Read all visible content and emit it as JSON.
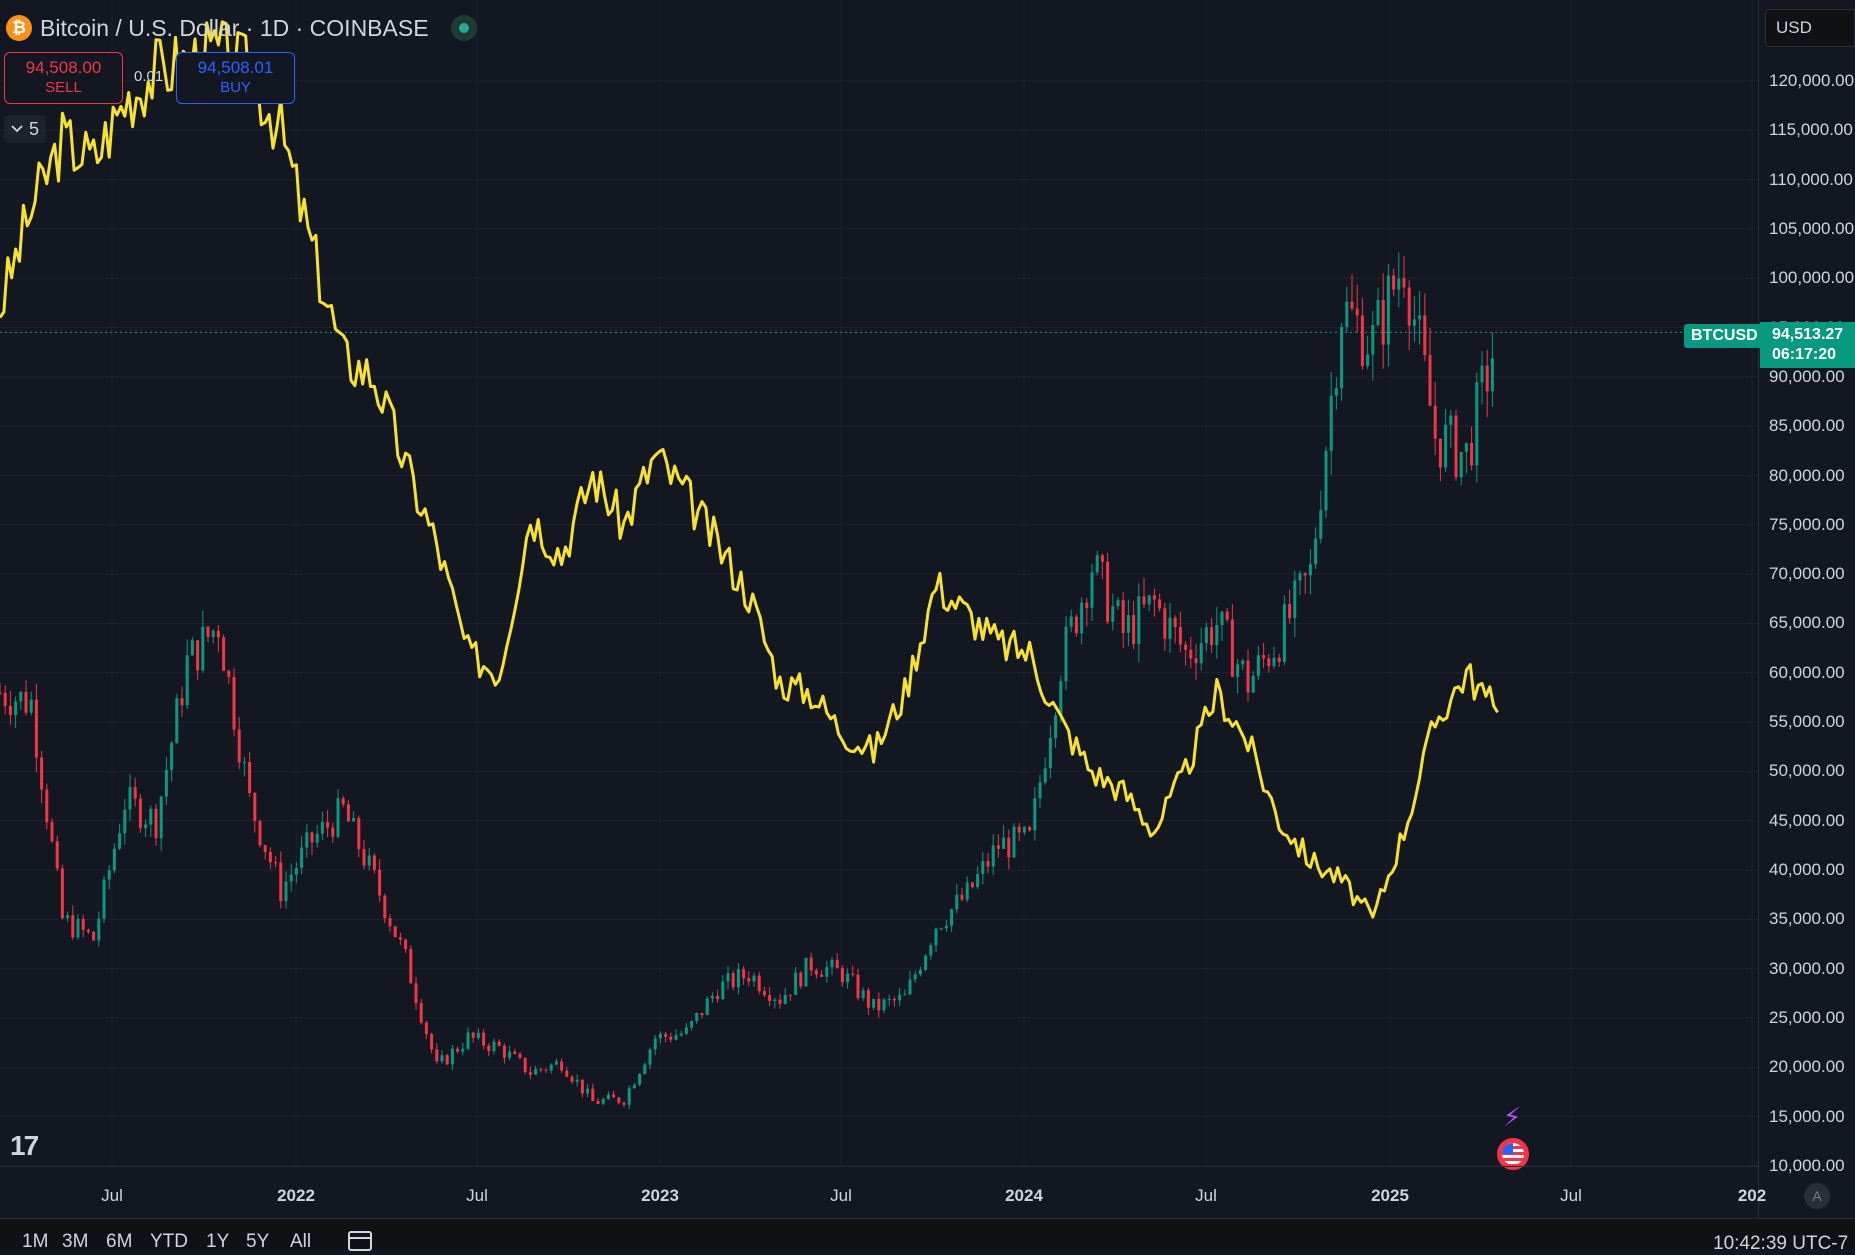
{
  "header": {
    "title": "Bitcoin / U.S. Dollar · 1D · COINBASE",
    "logo_glyph": "₿"
  },
  "trade": {
    "sell_price": "94,508.00",
    "sell_label": "SELL",
    "spread": "0.01",
    "buy_price": "94,508.01",
    "buy_label": "BUY"
  },
  "indicators_toggle": {
    "count": "5"
  },
  "price_axis": {
    "currency": "USD",
    "labels": [
      "120,000.00",
      "115,000.00",
      "110,000.00",
      "105,000.00",
      "100,000.00",
      "95,000.00",
      "90,000.00",
      "85,000.00",
      "80,000.00",
      "75,000.00",
      "70,000.00",
      "65,000.00",
      "60,000.00",
      "55,000.00",
      "50,000.00",
      "45,000.00",
      "40,000.00",
      "35,000.00",
      "30,000.00",
      "25,000.00",
      "20,000.00",
      "15,000.00",
      "10,000.00"
    ]
  },
  "last_price": {
    "symbol": "BTCUSD",
    "value": "94,513.27",
    "countdown": "06:17:20"
  },
  "time_axis": {
    "labels": [
      "Jul",
      "2022",
      "Jul",
      "2023",
      "Jul",
      "2024",
      "Jul",
      "2025",
      "Jul",
      "202"
    ],
    "auto_label": "A"
  },
  "bottom_bar": {
    "ranges": [
      "1M",
      "3M",
      "6M",
      "YTD",
      "1Y",
      "5Y",
      "All"
    ],
    "clock": "10:42:39 UTC-7"
  },
  "colors": {
    "up": "#089981",
    "down": "#f23645",
    "overlay": "#f7e131",
    "background": "#131722"
  },
  "icons": [
    "bitcoin-logo",
    "live-status-icon",
    "chevron-down-icon",
    "calendar-icon",
    "tradingview-logo",
    "ai-spark-icon",
    "us-flag-icon"
  ],
  "chart_data": {
    "type": "line",
    "title": "Bitcoin / U.S. Dollar · 1D · COINBASE",
    "y_unit": "USD",
    "ylim": [
      10000,
      120000
    ],
    "x_tick_labels": [
      "Jul",
      "2022",
      "Jul",
      "2023",
      "Jul",
      "2024",
      "Jul",
      "2025",
      "Jul",
      "202"
    ],
    "grid": true,
    "series": [
      {
        "name": "BTCUSD",
        "style": "candles",
        "x": [
          "2021-04",
          "2021-05",
          "2021-06",
          "2021-07",
          "2021-08",
          "2021-09",
          "2021-10",
          "2021-11",
          "2021-12",
          "2022-01",
          "2022-02",
          "2022-03",
          "2022-04",
          "2022-05",
          "2022-06",
          "2022-07",
          "2022-08",
          "2022-09",
          "2022-10",
          "2022-11",
          "2022-12",
          "2023-01",
          "2023-02",
          "2023-03",
          "2023-04",
          "2023-05",
          "2023-06",
          "2023-07",
          "2023-08",
          "2023-09",
          "2023-10",
          "2023-11",
          "2023-12",
          "2024-01",
          "2024-02",
          "2024-03",
          "2024-04",
          "2024-05",
          "2024-06",
          "2024-07",
          "2024-08",
          "2024-09",
          "2024-10",
          "2024-11",
          "2024-12",
          "2025-01",
          "2025-02",
          "2025-03",
          "2025-04"
        ],
        "values": [
          58000,
          57000,
          35000,
          33000,
          47000,
          45000,
          61000,
          65000,
          47000,
          38000,
          43000,
          46000,
          39000,
          31000,
          20000,
          23000,
          22000,
          19500,
          20500,
          16500,
          16800,
          23000,
          23500,
          28000,
          29500,
          27000,
          30500,
          29500,
          26000,
          27000,
          34500,
          37500,
          42500,
          43000,
          61000,
          71000,
          64000,
          67000,
          62000,
          65000,
          59000,
          63500,
          70000,
          97000,
          93500,
          102000,
          84000,
          82000,
          94500
        ]
      },
      {
        "name": "Overlay",
        "style": "line",
        "x": [
          "2021-04",
          "2021-05",
          "2021-06",
          "2021-07",
          "2021-08",
          "2021-09",
          "2021-10",
          "2021-11",
          "2021-12",
          "2022-01",
          "2022-02",
          "2022-03",
          "2022-04",
          "2022-05",
          "2022-06",
          "2022-07",
          "2022-08",
          "2022-09",
          "2022-10",
          "2022-11",
          "2022-12",
          "2023-01",
          "2023-02",
          "2023-03",
          "2023-04",
          "2023-05",
          "2023-06",
          "2023-07",
          "2023-08",
          "2023-09",
          "2023-10",
          "2023-11",
          "2023-12",
          "2024-01",
          "2024-02",
          "2024-03",
          "2024-04",
          "2024-05",
          "2024-06",
          "2024-07",
          "2024-08",
          "2024-09",
          "2024-10",
          "2024-11",
          "2024-12",
          "2025-01",
          "2025-02",
          "2025-03",
          "2025-04"
        ],
        "values": [
          97000,
          107000,
          114000,
          112000,
          118000,
          121000,
          122000,
          123000,
          121000,
          115000,
          103000,
          92000,
          90000,
          81000,
          73000,
          62000,
          60000,
          76000,
          72000,
          80000,
          75000,
          82000,
          78000,
          73000,
          68000,
          59000,
          58000,
          54000,
          52000,
          58000,
          69000,
          66000,
          63000,
          62000,
          55000,
          50000,
          48000,
          44000,
          50000,
          58000,
          53000,
          45000,
          41000,
          39000,
          35000,
          44000,
          55000,
          60000,
          56000
        ]
      }
    ]
  }
}
